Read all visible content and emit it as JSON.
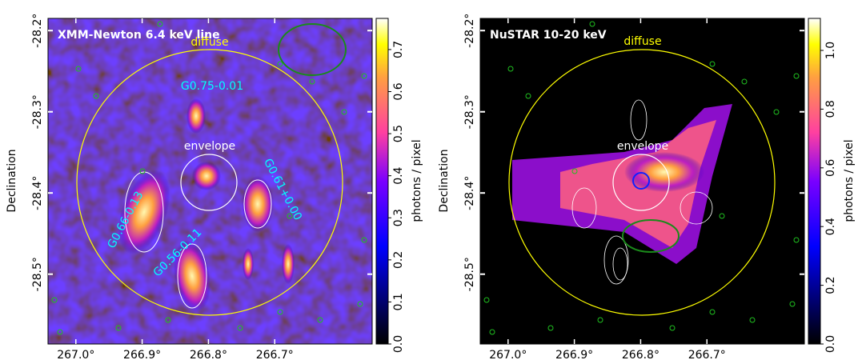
{
  "chart_data": [
    {
      "type": "image",
      "title": "XMM-Newton 6.4 keV line",
      "ylabel": "Declination",
      "xlim": [
        267.042,
        266.553
      ],
      "ylim": [
        -28.586,
        -28.185
      ],
      "xticks": [
        {
          "value": 267.0,
          "label": "267.0°"
        },
        {
          "value": 266.9,
          "label": "266.9°"
        },
        {
          "value": 266.8,
          "label": "266.8°"
        },
        {
          "value": 266.7,
          "label": "266.7°"
        }
      ],
      "yticks": [
        {
          "value": -28.2,
          "label": "-28.2°"
        },
        {
          "value": -28.3,
          "label": "-28.3°"
        },
        {
          "value": -28.4,
          "label": "-28.4°"
        },
        {
          "value": -28.5,
          "label": "-28.5°"
        }
      ],
      "colorbar": {
        "label": "photons / pixel",
        "lim": [
          0,
          0.774
        ],
        "ticks": [
          {
            "value": 0,
            "label": "0.0"
          },
          0.1,
          0.2,
          0.3,
          0.4,
          0.5,
          0.6,
          0.7
        ]
      },
      "annotations": [
        {
          "text": "diffuse",
          "color": "#ffff00"
        },
        {
          "text": "G0.75-0.01",
          "color": "#00ffff"
        },
        {
          "text": "envelope",
          "color": "#ffffff"
        },
        {
          "text": "G0.61+0.00",
          "color": "#00ffff"
        },
        {
          "text": "G0.66-0.13",
          "color": "#00ffff"
        },
        {
          "text": "G0.56-0.11",
          "color": "#00ffff"
        }
      ]
    },
    {
      "type": "image",
      "title": "NuSTAR 10-20 keV",
      "ylabel": "Declination",
      "xlim": [
        267.042,
        266.553
      ],
      "ylim": [
        -28.586,
        -28.185
      ],
      "xticks": [
        {
          "value": 267.0,
          "label": "267.0°"
        },
        {
          "value": 266.9,
          "label": "266.9°"
        },
        {
          "value": 266.8,
          "label": "266.8°"
        },
        {
          "value": 266.7,
          "label": "266.7°"
        }
      ],
      "yticks": [
        {
          "value": -28.2,
          "label": "-28.2°"
        },
        {
          "value": -28.3,
          "label": "-28.3°"
        },
        {
          "value": -28.4,
          "label": "-28.4°"
        },
        {
          "value": -28.5,
          "label": "-28.5°"
        }
      ],
      "colorbar": {
        "label": "photons / pixel",
        "lim": [
          0,
          1.109
        ],
        "ticks": [
          {
            "value": 0,
            "label": "0.0"
          },
          0.2,
          0.4,
          0.6,
          0.8,
          {
            "value": 1,
            "label": "1.0"
          }
        ]
      },
      "annotations": [
        {
          "text": "diffuse",
          "color": "#ffff00"
        },
        {
          "text": "envelope",
          "color": "#ffffff"
        }
      ]
    }
  ]
}
